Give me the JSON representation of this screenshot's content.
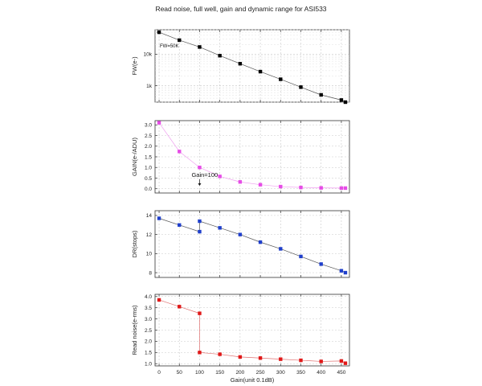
{
  "chart_data": {
    "type": "scatter",
    "title": "Read noise, full well, gain and dynamic range for ASI533",
    "xlabel": "Gain(unit 0.1dB)",
    "xlim": [
      -10,
      470
    ],
    "xticks": [
      0,
      50,
      100,
      150,
      200,
      250,
      300,
      350,
      400,
      450
    ],
    "grid": true,
    "panels": [
      {
        "id": "fw",
        "ylabel": "FW(e-)",
        "scale": "log",
        "ylim": [
          300,
          60000
        ],
        "yticks": [
          {
            "v": 1000,
            "label": "1k"
          },
          {
            "v": 10000,
            "label": "10k"
          }
        ],
        "color": "#000000",
        "annotation": "FW=50K",
        "points": [
          {
            "x": 0,
            "y": 50000
          },
          {
            "x": 50,
            "y": 28000
          },
          {
            "x": 100,
            "y": 17000
          },
          {
            "x": 150,
            "y": 9000
          },
          {
            "x": 200,
            "y": 5000
          },
          {
            "x": 250,
            "y": 2800
          },
          {
            "x": 300,
            "y": 1600
          },
          {
            "x": 350,
            "y": 900
          },
          {
            "x": 400,
            "y": 510
          },
          {
            "x": 450,
            "y": 350
          },
          {
            "x": 460,
            "y": 300
          }
        ]
      },
      {
        "id": "gain",
        "ylabel": "GAIN(e-/ADU)",
        "scale": "linear",
        "ylim": [
          -0.2,
          3.2
        ],
        "yticks": [
          {
            "v": 0,
            "label": "0.0"
          },
          {
            "v": 0.5,
            "label": "0.5"
          },
          {
            "v": 1,
            "label": "1.0"
          },
          {
            "v": 1.5,
            "label": "1.5"
          },
          {
            "v": 2,
            "label": "2.0"
          },
          {
            "v": 2.5,
            "label": "2.5"
          },
          {
            "v": 3,
            "label": "3.0"
          }
        ],
        "color": "#e64ce6",
        "annotation": "Gain=100",
        "points": [
          {
            "x": 0,
            "y": 3.1
          },
          {
            "x": 50,
            "y": 1.75
          },
          {
            "x": 100,
            "y": 1.0
          },
          {
            "x": 150,
            "y": 0.58
          },
          {
            "x": 200,
            "y": 0.32
          },
          {
            "x": 250,
            "y": 0.19
          },
          {
            "x": 300,
            "y": 0.1
          },
          {
            "x": 350,
            "y": 0.06
          },
          {
            "x": 400,
            "y": 0.04
          },
          {
            "x": 450,
            "y": 0.03
          },
          {
            "x": 460,
            "y": 0.03
          }
        ]
      },
      {
        "id": "dr",
        "ylabel": "DR(stops)",
        "scale": "linear",
        "ylim": [
          7.5,
          14.5
        ],
        "yticks": [
          {
            "v": 8,
            "label": "8"
          },
          {
            "v": 10,
            "label": "10"
          },
          {
            "v": 12,
            "label": "12"
          },
          {
            "v": 14,
            "label": "14"
          }
        ],
        "color": "#1f3fcc",
        "points": [
          {
            "x": 0,
            "y": 13.7
          },
          {
            "x": 50,
            "y": 13.0
          },
          {
            "x": 100,
            "y": 12.3
          },
          {
            "x": 100,
            "y": 13.4
          },
          {
            "x": 150,
            "y": 12.7
          },
          {
            "x": 200,
            "y": 12.0
          },
          {
            "x": 250,
            "y": 11.2
          },
          {
            "x": 300,
            "y": 10.5
          },
          {
            "x": 350,
            "y": 9.7
          },
          {
            "x": 400,
            "y": 8.9
          },
          {
            "x": 450,
            "y": 8.2
          },
          {
            "x": 460,
            "y": 8.0
          }
        ]
      },
      {
        "id": "rn",
        "ylabel": "Read noise(e-rms)",
        "scale": "linear",
        "ylim": [
          0.9,
          4.1
        ],
        "yticks": [
          {
            "v": 1.0,
            "label": "1.0"
          },
          {
            "v": 1.5,
            "label": "1.5"
          },
          {
            "v": 2.0,
            "label": "2.0"
          },
          {
            "v": 2.5,
            "label": "2.5"
          },
          {
            "v": 3.0,
            "label": "3.0"
          },
          {
            "v": 3.5,
            "label": "3.5"
          },
          {
            "v": 4.0,
            "label": "4.0"
          }
        ],
        "color": "#e01818",
        "points": [
          {
            "x": 0,
            "y": 3.85
          },
          {
            "x": 50,
            "y": 3.55
          },
          {
            "x": 100,
            "y": 3.25
          },
          {
            "x": 100,
            "y": 1.5
          },
          {
            "x": 150,
            "y": 1.42
          },
          {
            "x": 200,
            "y": 1.3
          },
          {
            "x": 250,
            "y": 1.25
          },
          {
            "x": 300,
            "y": 1.2
          },
          {
            "x": 350,
            "y": 1.15
          },
          {
            "x": 400,
            "y": 1.1
          },
          {
            "x": 450,
            "y": 1.12
          },
          {
            "x": 460,
            "y": 1.02
          }
        ]
      }
    ]
  }
}
